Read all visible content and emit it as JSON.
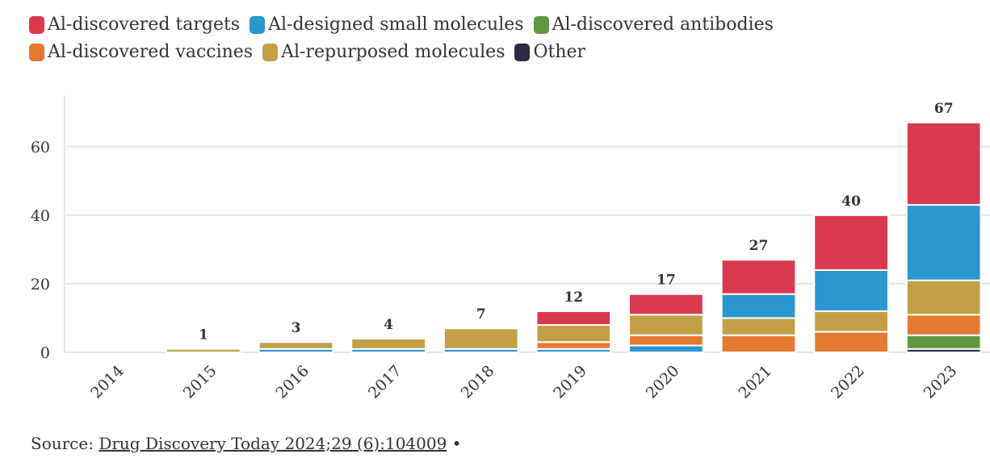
{
  "colors": {
    "targets": "#d9394f",
    "small_molecules": "#2b97cf",
    "antibodies": "#5f9745",
    "vaccines": "#e47a32",
    "repurposed": "#c3a047",
    "other": "#2b2b48"
  },
  "chart_data": {
    "type": "bar",
    "stacked": true,
    "categories": [
      "2014",
      "2015",
      "2016",
      "2017",
      "2018",
      "2019",
      "2020",
      "2021",
      "2022",
      "2023"
    ],
    "totals": [
      "",
      "1",
      "3",
      "4",
      "7",
      "12",
      "17",
      "27",
      "40",
      "67"
    ],
    "series": [
      {
        "key": "other",
        "name": "Other",
        "color": "#2b2b48",
        "values": [
          0,
          0,
          0,
          0,
          0,
          0,
          0,
          0,
          0,
          1
        ]
      },
      {
        "key": "antibodies",
        "name": "Al-discovered antibodies",
        "color": "#5f9745",
        "values": [
          0,
          0,
          0,
          0,
          0,
          0,
          0,
          0,
          0,
          4
        ]
      },
      {
        "key": "small_molecules_low",
        "name": "Al-designed small molecules",
        "color": "#2b97cf",
        "values": [
          0,
          0,
          1,
          1,
          1,
          1,
          2,
          0,
          0,
          0
        ]
      },
      {
        "key": "vaccines",
        "name": "Al-discovered vaccines",
        "color": "#e47a32",
        "values": [
          0,
          0,
          0,
          0,
          0,
          2,
          3,
          5,
          6,
          6
        ]
      },
      {
        "key": "repurposed",
        "name": "Al-repurposed molecules",
        "color": "#c3a047",
        "values": [
          0,
          1,
          2,
          3,
          6,
          5,
          6,
          5,
          6,
          10
        ]
      },
      {
        "key": "small_molecules",
        "name": "Al-designed small molecules",
        "color": "#2b97cf",
        "values": [
          0,
          0,
          0,
          0,
          0,
          0,
          0,
          7,
          12,
          22
        ]
      },
      {
        "key": "targets",
        "name": "Al-discovered targets",
        "color": "#d9394f",
        "values": [
          0,
          0,
          0,
          0,
          0,
          4,
          6,
          10,
          16,
          24
        ]
      }
    ],
    "yticks": [
      "0",
      "20",
      "40",
      "60"
    ],
    "ylim": [
      0,
      75
    ],
    "grid": true,
    "legend_placement": "top"
  },
  "legend": [
    {
      "label": "Al-discovered targets",
      "color": "#d9394f"
    },
    {
      "label": "Al-designed small molecules",
      "color": "#2b97cf"
    },
    {
      "label": "Al-discovered antibodies",
      "color": "#5f9745"
    },
    {
      "label": "Al-discovered vaccines",
      "color": "#e47a32"
    },
    {
      "label": "Al-repurposed molecules",
      "color": "#c3a047"
    },
    {
      "label": "Other",
      "color": "#2b2b48"
    }
  ],
  "source": {
    "prefix": "Source: ",
    "link_text": "Drug Discovery Today 2024;29 (6):104009",
    "suffix": " •"
  }
}
